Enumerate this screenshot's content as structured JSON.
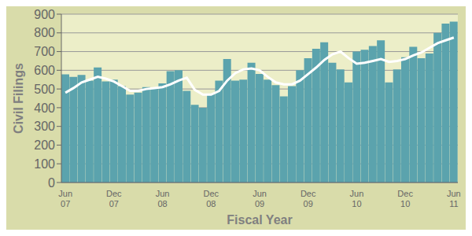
{
  "chart_data": {
    "type": "bar",
    "xlabel": "Fiscal Year",
    "ylabel": "Civil Filings",
    "categories": [
      "Jun\n07",
      null,
      null,
      null,
      null,
      null,
      "Dec\n07",
      null,
      null,
      null,
      null,
      null,
      "Jun\n08",
      null,
      null,
      null,
      null,
      null,
      "Dec\n08",
      null,
      null,
      null,
      null,
      null,
      "Jun\n09",
      null,
      null,
      null,
      null,
      null,
      "Dec\n09",
      null,
      null,
      null,
      null,
      null,
      "Jun\n10",
      null,
      null,
      null,
      null,
      null,
      "Dec\n10",
      null,
      null,
      null,
      null,
      null,
      "Jun\n11"
    ],
    "series": [
      {
        "type": "bar",
        "color": "#5ba3ad",
        "values": [
          578,
          565,
          575,
          545,
          615,
          540,
          550,
          515,
          470,
          480,
          510,
          500,
          530,
          595,
          600,
          490,
          415,
          400,
          475,
          545,
          660,
          545,
          550,
          640,
          580,
          550,
          520,
          460,
          515,
          600,
          665,
          715,
          750,
          640,
          605,
          535,
          700,
          710,
          730,
          760,
          535,
          605,
          670,
          725,
          665,
          690,
          800,
          850,
          860
        ]
      },
      {
        "type": "line",
        "color": "#ffffff",
        "values": [
          480,
          505,
          535,
          550,
          565,
          555,
          540,
          515,
          490,
          490,
          500,
          505,
          510,
          525,
          545,
          560,
          495,
          470,
          470,
          490,
          545,
          585,
          605,
          610,
          600,
          565,
          535,
          525,
          525,
          545,
          580,
          615,
          655,
          685,
          700,
          665,
          635,
          640,
          650,
          660,
          645,
          650,
          660,
          680,
          695,
          720,
          745,
          760,
          775
        ]
      }
    ],
    "ylim": [
      0,
      900
    ],
    "yticks": [
      0,
      100,
      200,
      300,
      400,
      500,
      600,
      700,
      800,
      900
    ],
    "grid": true
  }
}
